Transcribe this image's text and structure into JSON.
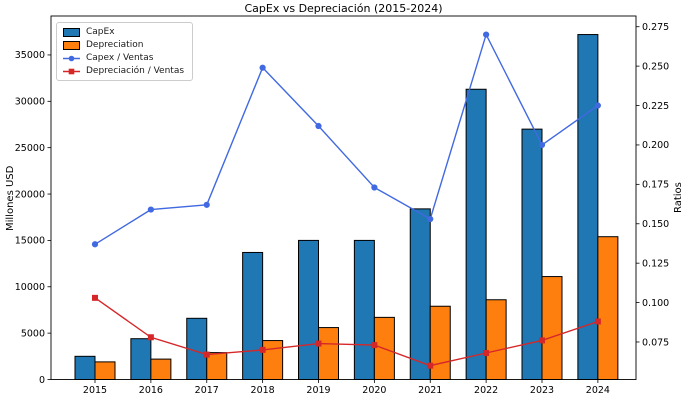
{
  "chart_data": {
    "type": "bar",
    "subtype": "grouped bars with dual-axis line overlay",
    "title": "CapEx vs Depreciación (2015-2024)",
    "categories": [
      "2015",
      "2016",
      "2017",
      "2018",
      "2019",
      "2020",
      "2021",
      "2022",
      "2023",
      "2024"
    ],
    "bar_series": [
      {
        "name": "CapEx",
        "axis": "left",
        "color": "#1f77b4",
        "edge_color": "#000000",
        "values": [
          2500,
          4400,
          6600,
          13700,
          15000,
          15000,
          18400,
          31300,
          27000,
          37200
        ]
      },
      {
        "name": "Depreciation",
        "axis": "left",
        "color": "#ff7f0e",
        "edge_color": "#000000",
        "values": [
          1900,
          2200,
          2900,
          4200,
          5600,
          6700,
          7900,
          8600,
          11100,
          15400
        ]
      }
    ],
    "line_series": [
      {
        "name": "Capex / Ventas",
        "axis": "right",
        "color": "#4169e1",
        "marker": "circle",
        "values": [
          0.137,
          0.159,
          0.162,
          0.249,
          0.212,
          0.173,
          0.153,
          0.27,
          0.2,
          0.225
        ]
      },
      {
        "name": "Depreciación / Ventas",
        "axis": "right",
        "color": "#d62728",
        "marker": "square",
        "values": [
          0.103,
          0.078,
          0.067,
          0.07,
          0.074,
          0.073,
          0.06,
          0.068,
          0.076,
          0.088
        ]
      }
    ],
    "axes": {
      "left": {
        "label": "Millones USD",
        "ticks": [
          0,
          5000,
          10000,
          15000,
          20000,
          25000,
          30000,
          35000
        ],
        "range": [
          0,
          39200
        ]
      },
      "right": {
        "label": "Ratios",
        "ticks": [
          0.075,
          0.1,
          0.125,
          0.15,
          0.175,
          0.2,
          0.225,
          0.25,
          0.275
        ],
        "range": [
          0.0512,
          0.2818
        ]
      },
      "x": {
        "ticks": [
          "2015",
          "2016",
          "2017",
          "2018",
          "2019",
          "2020",
          "2021",
          "2022",
          "2023",
          "2024"
        ]
      }
    },
    "legend": {
      "position": "upper left",
      "entries": [
        "CapEx",
        "Depreciation",
        "Capex / Ventas",
        "Depreciación / Ventas"
      ]
    },
    "grid": false,
    "background": "#ffffff"
  }
}
